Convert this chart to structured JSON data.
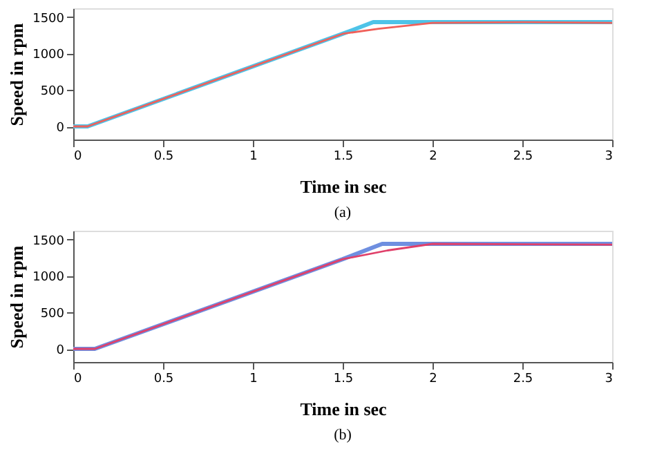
{
  "chart_data": [
    {
      "type": "line",
      "xlabel": "Time in sec",
      "ylabel": "Speed in rpm",
      "annotations": [
        "(a)"
      ],
      "xlim": [
        0,
        3
      ],
      "xticks": [
        0,
        0.5,
        1,
        1.5,
        2,
        2.5,
        3
      ],
      "ylim": [
        -180,
        1620
      ],
      "yticks": [
        0,
        500,
        1000,
        1500
      ],
      "grid": false,
      "series": [
        {
          "color": "#4ec3e8",
          "x": [
            0,
            0.08,
            1.5,
            1.67,
            3
          ],
          "values": [
            0,
            0,
            1270,
            1430,
            1430
          ]
        },
        {
          "color": "#f0605a",
          "x": [
            0,
            0.08,
            1.5,
            1.7,
            2,
            2.5,
            3
          ],
          "values": [
            0,
            0,
            1270,
            1340,
            1420,
            1430,
            1420
          ]
        }
      ]
    },
    {
      "type": "line",
      "xlabel": "Time in sec",
      "ylabel": "Speed in rpm",
      "annotations": [
        "(b)"
      ],
      "xlim": [
        0,
        3
      ],
      "xticks": [
        0,
        0.5,
        1,
        1.5,
        2,
        2.5,
        3
      ],
      "ylim": [
        -180,
        1620
      ],
      "yticks": [
        0,
        500,
        1000,
        1500
      ],
      "grid": false,
      "series": [
        {
          "color": "#6f8fe0",
          "x": [
            0,
            0.12,
            1.5,
            1.72,
            3
          ],
          "values": [
            0,
            0,
            1230,
            1440,
            1440
          ]
        },
        {
          "color": "#e0406a",
          "x": [
            0,
            0.12,
            1.5,
            1.75,
            2,
            3
          ],
          "values": [
            0,
            0,
            1230,
            1350,
            1440,
            1430
          ]
        }
      ]
    }
  ]
}
